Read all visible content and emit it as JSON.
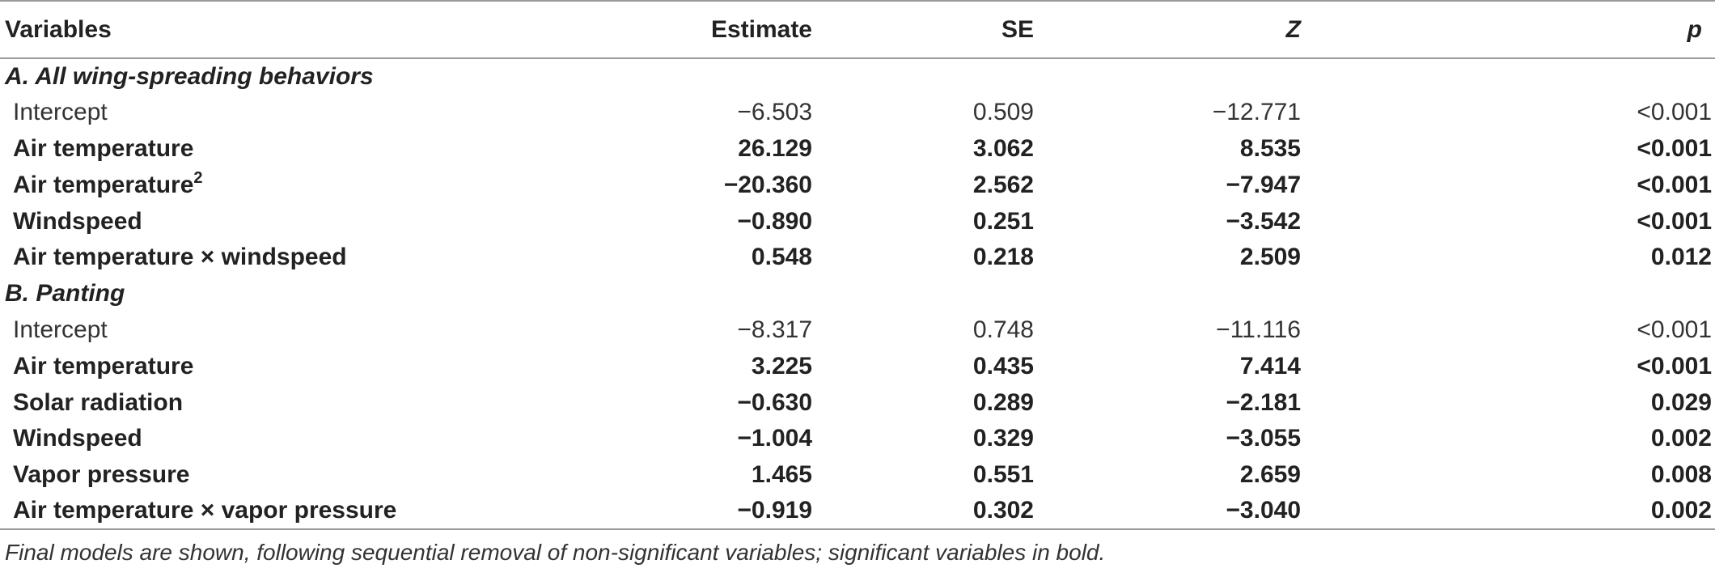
{
  "table": {
    "headers": {
      "variables": "Variables",
      "estimate": "Estimate",
      "se": "SE",
      "z": "Z",
      "p": "p"
    },
    "sections": [
      {
        "title": "A. All wing-spreading behaviors",
        "rows": [
          {
            "variable": "Intercept",
            "sup": "",
            "estimate": "−6.503",
            "se": "0.509",
            "z": "−12.771",
            "p": "<0.001",
            "significant": false
          },
          {
            "variable": "Air temperature",
            "sup": "",
            "estimate": "26.129",
            "se": "3.062",
            "z": "8.535",
            "p": "<0.001",
            "significant": true
          },
          {
            "variable": "Air temperature",
            "sup": "2",
            "estimate": "−20.360",
            "se": "2.562",
            "z": "−7.947",
            "p": "<0.001",
            "significant": true
          },
          {
            "variable": "Windspeed",
            "sup": "",
            "estimate": "−0.890",
            "se": "0.251",
            "z": "−3.542",
            "p": "<0.001",
            "significant": true
          },
          {
            "variable": "Air temperature × windspeed",
            "sup": "",
            "estimate": "0.548",
            "se": "0.218",
            "z": "2.509",
            "p": "0.012",
            "significant": true
          }
        ]
      },
      {
        "title": "B. Panting",
        "rows": [
          {
            "variable": "Intercept",
            "sup": "",
            "estimate": "−8.317",
            "se": "0.748",
            "z": "−11.116",
            "p": "<0.001",
            "significant": false
          },
          {
            "variable": "Air temperature",
            "sup": "",
            "estimate": "3.225",
            "se": "0.435",
            "z": "7.414",
            "p": "<0.001",
            "significant": true
          },
          {
            "variable": "Solar radiation",
            "sup": "",
            "estimate": "−0.630",
            "se": "0.289",
            "z": "−2.181",
            "p": "0.029",
            "significant": true
          },
          {
            "variable": "Windspeed",
            "sup": "",
            "estimate": "−1.004",
            "se": "0.329",
            "z": "−3.055",
            "p": "0.002",
            "significant": true
          },
          {
            "variable": "Vapor pressure",
            "sup": "",
            "estimate": "1.465",
            "se": "0.551",
            "z": "2.659",
            "p": "0.008",
            "significant": true
          },
          {
            "variable": "Air temperature × vapor pressure",
            "sup": "",
            "estimate": "−0.919",
            "se": "0.302",
            "z": "−3.040",
            "p": "0.002",
            "significant": true
          }
        ]
      }
    ],
    "footnote": "Final models are shown, following sequential removal of non-significant variables; significant variables in bold."
  }
}
